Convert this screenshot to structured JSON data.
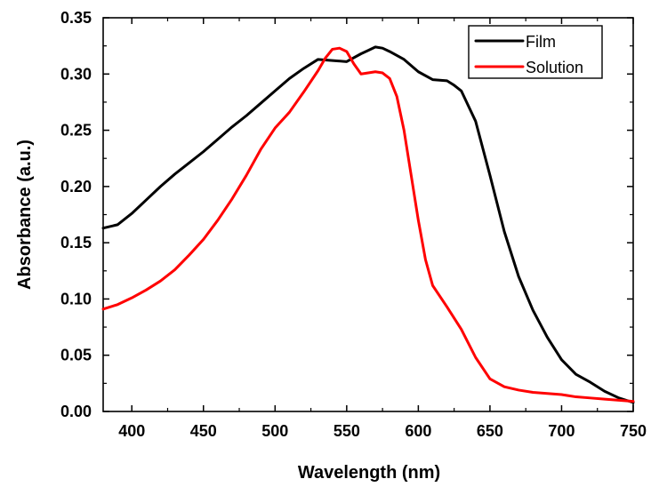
{
  "chart_data": {
    "type": "line",
    "title": "",
    "xlabel": "Wavelength (nm)",
    "ylabel": "Absorbance (a.u.)",
    "xlim": [
      380,
      750
    ],
    "ylim": [
      0,
      0.35
    ],
    "x_ticks": [
      400,
      450,
      500,
      550,
      600,
      650,
      700,
      750
    ],
    "y_ticks": [
      0.0,
      0.05,
      0.1,
      0.15,
      0.2,
      0.25,
      0.3,
      0.35
    ],
    "x_tick_labels": [
      "400",
      "450",
      "500",
      "550",
      "600",
      "650",
      "700",
      "750"
    ],
    "y_tick_labels": [
      "0.00",
      "0.05",
      "0.10",
      "0.15",
      "0.20",
      "0.25",
      "0.30",
      "0.35"
    ],
    "grid": false,
    "legend_position": "top-right",
    "series": [
      {
        "name": "Film",
        "color": "#000000",
        "x": [
          380,
          390,
          400,
          410,
          420,
          430,
          440,
          450,
          460,
          470,
          480,
          490,
          500,
          510,
          520,
          530,
          540,
          550,
          560,
          565,
          570,
          575,
          580,
          590,
          600,
          610,
          620,
          625,
          630,
          640,
          650,
          660,
          670,
          680,
          690,
          700,
          710,
          720,
          730,
          740,
          750
        ],
        "y": [
          0.163,
          0.166,
          0.176,
          0.188,
          0.2,
          0.211,
          0.221,
          0.231,
          0.242,
          0.253,
          0.263,
          0.274,
          0.285,
          0.296,
          0.305,
          0.313,
          0.312,
          0.311,
          0.318,
          0.321,
          0.324,
          0.323,
          0.32,
          0.313,
          0.302,
          0.295,
          0.294,
          0.29,
          0.285,
          0.258,
          0.21,
          0.16,
          0.12,
          0.09,
          0.066,
          0.046,
          0.033,
          0.026,
          0.018,
          0.012,
          0.008
        ]
      },
      {
        "name": "Solution",
        "color": "#ff0000",
        "x": [
          380,
          390,
          400,
          410,
          420,
          430,
          440,
          450,
          460,
          470,
          480,
          490,
          500,
          510,
          520,
          530,
          535,
          540,
          545,
          550,
          555,
          560,
          565,
          570,
          575,
          580,
          585,
          590,
          595,
          600,
          605,
          610,
          620,
          630,
          640,
          650,
          660,
          670,
          680,
          690,
          700,
          710,
          720,
          730,
          740,
          750
        ],
        "y": [
          0.091,
          0.095,
          0.101,
          0.108,
          0.116,
          0.126,
          0.139,
          0.153,
          0.17,
          0.189,
          0.21,
          0.233,
          0.252,
          0.266,
          0.284,
          0.303,
          0.314,
          0.322,
          0.323,
          0.32,
          0.309,
          0.3,
          0.301,
          0.302,
          0.301,
          0.296,
          0.28,
          0.25,
          0.21,
          0.17,
          0.135,
          0.112,
          0.093,
          0.073,
          0.048,
          0.029,
          0.022,
          0.019,
          0.017,
          0.016,
          0.015,
          0.013,
          0.012,
          0.011,
          0.01,
          0.009
        ]
      }
    ]
  }
}
